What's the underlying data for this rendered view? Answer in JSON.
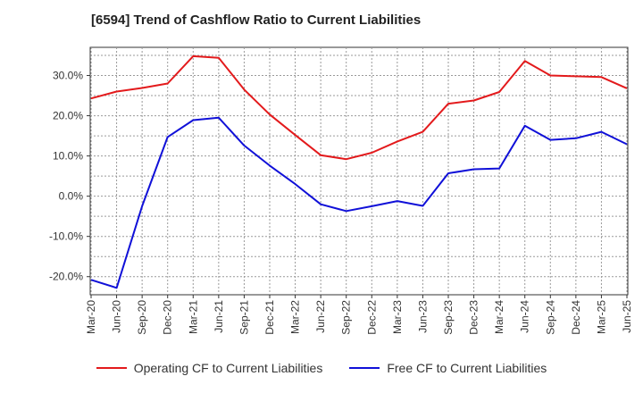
{
  "chart_data": {
    "type": "line",
    "title": "[6594]  Trend of Cashflow Ratio to Current Liabilities",
    "x": [
      "Mar-20",
      "Jun-20",
      "Sep-20",
      "Dec-20",
      "Mar-21",
      "Jun-21",
      "Sep-21",
      "Dec-21",
      "Mar-22",
      "Jun-22",
      "Sep-22",
      "Dec-22",
      "Mar-23",
      "Jun-23",
      "Sep-23",
      "Dec-23",
      "Mar-24",
      "Jun-24",
      "Sep-24",
      "Dec-24",
      "Mar-25",
      "Jun-25"
    ],
    "yticks": [
      "30.0%",
      "20.0%",
      "10.0%",
      "0.0%",
      "-10.0%",
      "-20.0%"
    ],
    "ylim": [
      -24.5,
      37
    ],
    "grid": true,
    "legend_position": "bottom",
    "series": [
      {
        "name": "Operating CF to Current Liabilities",
        "color": "#e31a1c",
        "values": [
          24.3,
          26.0,
          26.9,
          28.0,
          34.8,
          34.4,
          26.5,
          20.3,
          15.2,
          10.2,
          9.2,
          10.8,
          13.6,
          16.0,
          23.0,
          23.8,
          25.9,
          33.6,
          30.0,
          29.8,
          29.6,
          26.8
        ]
      },
      {
        "name": "Free CF to Current Liabilities",
        "color": "#1010d8",
        "values": [
          -20.8,
          -22.8,
          -2.5,
          14.7,
          18.9,
          19.5,
          12.6,
          7.6,
          3.0,
          -2.0,
          -3.7,
          -2.5,
          -1.2,
          -2.4,
          5.7,
          6.7,
          6.9,
          17.5,
          14.0,
          14.4,
          16.0,
          12.9
        ]
      }
    ]
  },
  "legend": {
    "operating_label": "Operating CF to Current Liabilities",
    "free_label": "Free CF to Current Liabilities"
  }
}
